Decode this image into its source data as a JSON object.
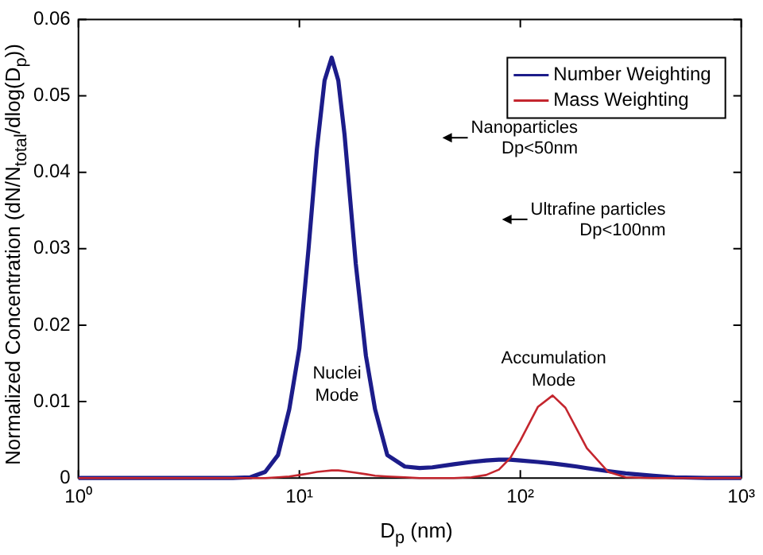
{
  "chart_data": {
    "type": "line",
    "xlabel": "D$_{p}$ (nm)",
    "ylabel": "Normalized Concentration (dN/N$_{total}$/dlog(D$_{p}$))",
    "x": [
      1,
      2,
      3,
      4,
      5,
      6,
      7,
      8,
      9,
      10,
      11,
      12,
      13,
      14,
      15,
      16,
      18,
      20,
      22,
      25,
      30,
      35,
      40,
      50,
      60,
      70,
      80,
      90,
      100,
      120,
      140,
      160,
      180,
      200,
      250,
      300,
      400,
      500,
      700,
      1000
    ],
    "series": [
      {
        "name": "Number Weighting",
        "color": "#1c1c8a",
        "values": [
          0,
          0,
          0,
          0,
          0,
          0.0001,
          0.0008,
          0.003,
          0.009,
          0.017,
          0.03,
          0.043,
          0.052,
          0.055,
          0.052,
          0.045,
          0.028,
          0.016,
          0.009,
          0.003,
          0.0015,
          0.0013,
          0.0014,
          0.0018,
          0.0021,
          0.0023,
          0.0024,
          0.0024,
          0.0023,
          0.0021,
          0.0019,
          0.0017,
          0.0015,
          0.0013,
          0.0009,
          0.0006,
          0.0003,
          0.0001,
          0,
          0
        ]
      },
      {
        "name": "Mass Weighting",
        "color": "#c4262e",
        "values": [
          0,
          0,
          0,
          0,
          0,
          0,
          0,
          0.0001,
          0.0002,
          0.0004,
          0.0006,
          0.0008,
          0.0009,
          0.001,
          0.001,
          0.0009,
          0.0007,
          0.0005,
          0.0003,
          0.0002,
          0.0001,
          0,
          0,
          0,
          0.0001,
          0.0004,
          0.0011,
          0.0026,
          0.0049,
          0.0093,
          0.0108,
          0.0092,
          0.0064,
          0.0039,
          0.0008,
          0.0001,
          0,
          0,
          0,
          0
        ]
      }
    ],
    "log": "x",
    "xlim": [
      1,
      1000
    ],
    "xticks": [
      {
        "value": 1,
        "label": "10⁰"
      },
      {
        "value": 10,
        "label": "10¹"
      },
      {
        "value": 100,
        "label": "10²"
      },
      {
        "value": 1000,
        "label": "10³"
      }
    ],
    "ylim": [
      0,
      0.06
    ],
    "yticks": [
      0,
      0.01,
      0.02,
      0.03,
      0.04,
      0.05,
      0.06
    ],
    "legend": "top right",
    "grid": false,
    "annotations": [
      "Nanoparticles\nDp<50nm",
      "Ultrafine particles\nDp<100nm",
      "Nuclei\nMode",
      "Accumulation\nMode"
    ]
  }
}
